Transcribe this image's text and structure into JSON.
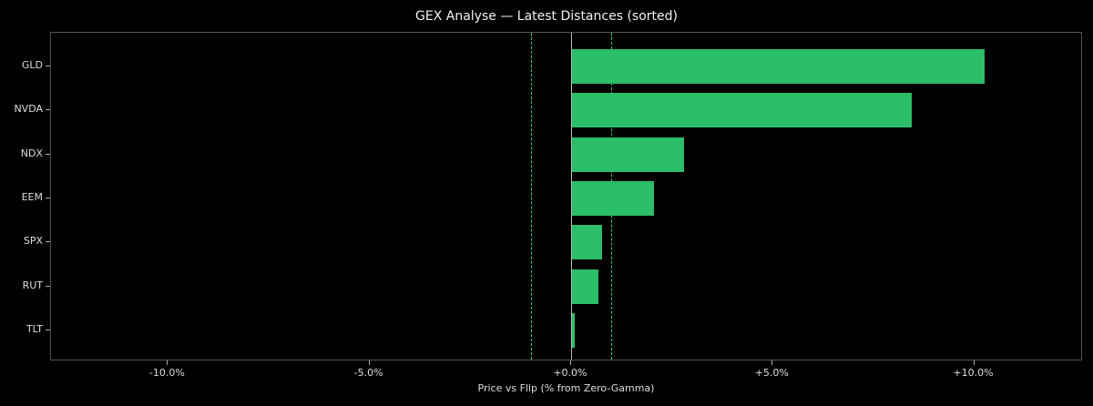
{
  "title": "GEX Analyse — Latest Distances (sorted)",
  "x_axis_label": "Price vs Flip (% from Zero-Gamma)",
  "x_ticks": [
    "-10.0%",
    "-5.0%",
    "+0.0%",
    "+5.0%",
    "+10.0%"
  ],
  "y_ticks": [
    "GLD",
    "NVDA",
    "NDX",
    "EEM",
    "SPX",
    "RUT",
    "TLT"
  ],
  "colors": {
    "bar": "#2bbd68",
    "threshold": "#2fd67a",
    "background": "#000000"
  },
  "chart_data": {
    "type": "bar",
    "orientation": "horizontal",
    "title": "GEX Analyse — Latest Distances (sorted)",
    "xlabel": "Price vs Flip (% from Zero-Gamma)",
    "ylabel": "",
    "categories": [
      "GLD",
      "NVDA",
      "NDX",
      "EEM",
      "SPX",
      "RUT",
      "TLT"
    ],
    "values": [
      10.25,
      8.45,
      2.8,
      2.05,
      0.77,
      0.68,
      0.1
    ],
    "xlim": [
      -12.9,
      12.7
    ],
    "x_tick_values": [
      -10,
      -5,
      0,
      5,
      10
    ],
    "reference_lines": [
      {
        "x": 0,
        "style": "solid",
        "color": "#bbbbbb"
      },
      {
        "x": -1.0,
        "style": "dashed",
        "color": "#2fd67a"
      },
      {
        "x": 1.0,
        "style": "dashed",
        "color": "#2fd67a"
      }
    ],
    "grid": false,
    "legend": null
  }
}
